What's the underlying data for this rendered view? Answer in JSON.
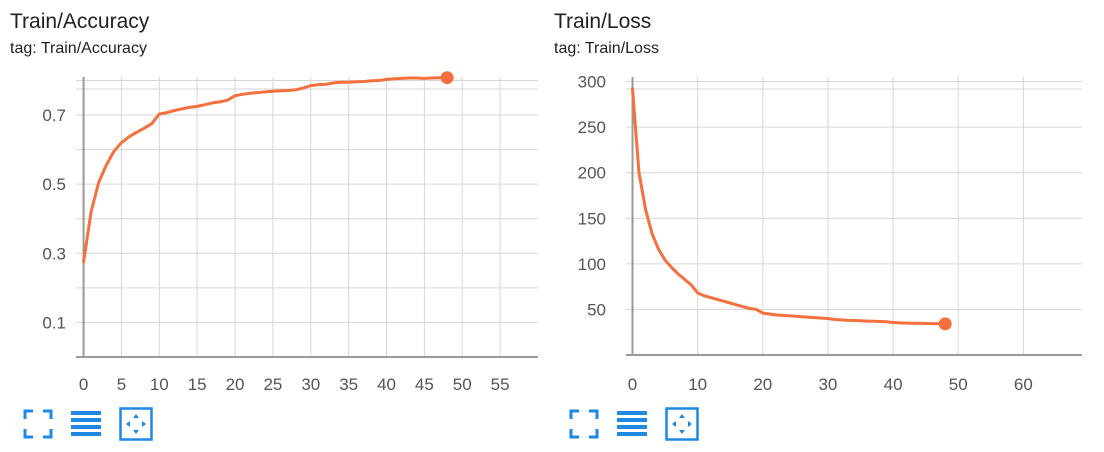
{
  "colors": {
    "line": "#f4703f",
    "grid": "#d6d6d6",
    "axis": "#999999",
    "icon": "#1e88e5"
  },
  "icons": [
    "fullscreen-icon",
    "toggle-log-scale-icon",
    "fit-domain-icon"
  ],
  "cards": [
    {
      "title": "Train/Accuracy",
      "tag": "tag: Train/Accuracy"
    },
    {
      "title": "Train/Loss",
      "tag": "tag: Train/Loss"
    }
  ],
  "chart_data": [
    {
      "type": "line",
      "title": "Train/Accuracy",
      "xlabel": "",
      "ylabel": "",
      "xlim": [
        -1,
        60
      ],
      "ylim": [
        0,
        0.81
      ],
      "xticks": [
        0,
        5,
        10,
        15,
        20,
        25,
        30,
        35,
        40,
        45,
        50,
        55
      ],
      "yticks": [
        0.1,
        0.3,
        0.5,
        0.7
      ],
      "ytick_labels": [
        "0.1",
        "0.3",
        "0.5",
        "0.7"
      ],
      "grid": true,
      "series": [
        {
          "x": [
            0,
            1,
            2,
            3,
            4,
            5,
            6,
            7,
            8,
            9,
            10,
            11,
            12,
            13,
            14,
            15,
            16,
            17,
            18,
            19,
            20,
            21,
            22,
            23,
            24,
            25,
            26,
            27,
            28,
            29,
            30,
            31,
            32,
            33,
            34,
            35,
            36,
            37,
            38,
            39,
            40,
            41,
            42,
            43,
            44,
            45,
            46,
            47,
            48
          ],
          "values": [
            0.275,
            0.42,
            0.505,
            0.555,
            0.595,
            0.62,
            0.637,
            0.65,
            0.662,
            0.675,
            0.703,
            0.707,
            0.713,
            0.718,
            0.722,
            0.725,
            0.73,
            0.735,
            0.738,
            0.743,
            0.756,
            0.76,
            0.763,
            0.765,
            0.767,
            0.769,
            0.77,
            0.771,
            0.773,
            0.778,
            0.785,
            0.788,
            0.789,
            0.793,
            0.795,
            0.795,
            0.796,
            0.797,
            0.799,
            0.8,
            0.803,
            0.805,
            0.806,
            0.807,
            0.807,
            0.806,
            0.807,
            0.808,
            0.808
          ]
        }
      ]
    },
    {
      "type": "line",
      "title": "Train/Loss",
      "xlabel": "",
      "ylabel": "",
      "xlim": [
        -1,
        69
      ],
      "ylim": [
        0,
        305
      ],
      "xticks": [
        0,
        10,
        20,
        30,
        40,
        50,
        60
      ],
      "yticks": [
        50,
        100,
        150,
        200,
        250,
        300
      ],
      "ytick_labels": [
        "50",
        "100",
        "150",
        "200",
        "250",
        "300"
      ],
      "grid": true,
      "series": [
        {
          "x": [
            0,
            1,
            2,
            3,
            4,
            5,
            6,
            7,
            8,
            9,
            10,
            11,
            12,
            13,
            14,
            15,
            16,
            17,
            18,
            19,
            20,
            21,
            22,
            23,
            24,
            25,
            26,
            27,
            28,
            29,
            30,
            31,
            32,
            33,
            34,
            35,
            36,
            37,
            38,
            39,
            40,
            41,
            42,
            43,
            44,
            45,
            46,
            47,
            48
          ],
          "values": [
            292,
            200,
            160,
            133,
            116,
            104,
            96,
            89,
            83,
            77,
            68,
            65,
            63,
            61,
            59,
            57,
            55,
            53,
            51,
            50,
            46,
            45,
            44,
            43.5,
            43,
            42.5,
            42,
            41.5,
            41,
            40.5,
            40,
            39,
            38.5,
            38,
            37.8,
            37.5,
            37.2,
            37,
            36.7,
            36.4,
            35.7,
            35.2,
            35,
            34.9,
            34.8,
            34.6,
            34.5,
            34.4,
            34.2
          ]
        }
      ]
    }
  ]
}
